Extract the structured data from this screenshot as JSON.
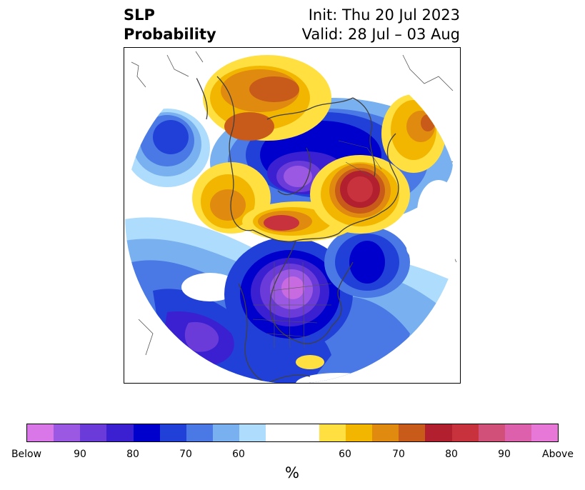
{
  "title": {
    "line1": "SLP",
    "line2": "Probability"
  },
  "init_label": "Init: Thu 20 Jul 2023",
  "valid_label": "Valid: 28 Jul – 03 Aug",
  "map": {
    "projection": "north-polar-stereographic",
    "coastline_color": "#404040",
    "features": [
      {
        "name": "below-core-greenland",
        "category": "Below 90",
        "color": "#9b59e3"
      },
      {
        "name": "above-core-siberia",
        "category": "Above 80",
        "color": "#b22030"
      },
      {
        "name": "below-core-canada",
        "category": "Below 90",
        "color": "#c86ae0"
      },
      {
        "name": "above-core-arctic",
        "category": "Above 80",
        "color": "#c8323c"
      },
      {
        "name": "above-core-kamchatka",
        "category": "Above 70",
        "color": "#c85a1a"
      }
    ]
  },
  "colorbar": {
    "colors": [
      "#d977e8",
      "#9b59e3",
      "#6a3bd8",
      "#3a20d0",
      "#0000cc",
      "#2040d8",
      "#4a78e4",
      "#78b0f0",
      "#aedcfc",
      "#ffffff",
      "#ffffff",
      "#ffe040",
      "#f2b600",
      "#e08a10",
      "#c85a1a",
      "#b22030",
      "#c8323c",
      "#d0507a",
      "#dc60ac",
      "#e878d8"
    ],
    "tick_labels": [
      "Below",
      "90",
      "80",
      "70",
      "60",
      "60",
      "70",
      "80",
      "90",
      "Above"
    ],
    "unit_label": "%"
  }
}
